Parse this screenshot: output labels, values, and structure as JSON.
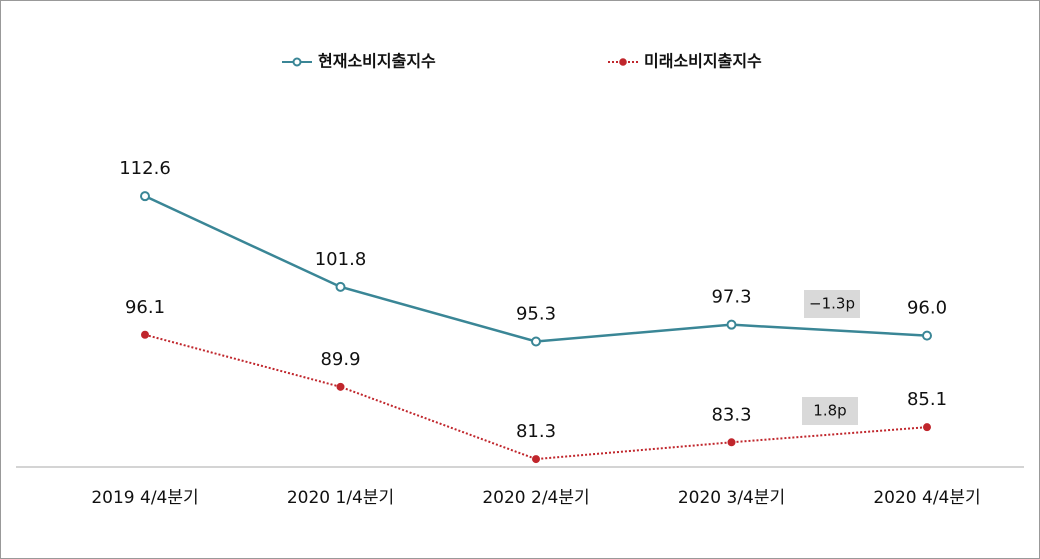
{
  "chart_data": {
    "type": "line",
    "categories": [
      "2019 4/4분기",
      "2020 1/4분기",
      "2020 2/4분기",
      "2020 3/4분기",
      "2020 4/4분기"
    ],
    "series": [
      {
        "name": "현재소비지출지수",
        "color": "#3a8696",
        "values": [
          112.6,
          101.8,
          95.3,
          97.3,
          96.0
        ],
        "value_labels": [
          "112.6",
          "101.8",
          "95.3",
          "97.3",
          "96.0"
        ]
      },
      {
        "name": "미래소비지출지수",
        "color": "#c0262c",
        "values": [
          96.1,
          89.9,
          81.3,
          83.3,
          85.1
        ],
        "value_labels": [
          "96.1",
          "89.9",
          "81.3",
          "83.3",
          "85.1"
        ]
      }
    ],
    "annotations": [
      "−1.3p",
      "1.8p"
    ],
    "ylim": [
      80,
      130
    ]
  }
}
